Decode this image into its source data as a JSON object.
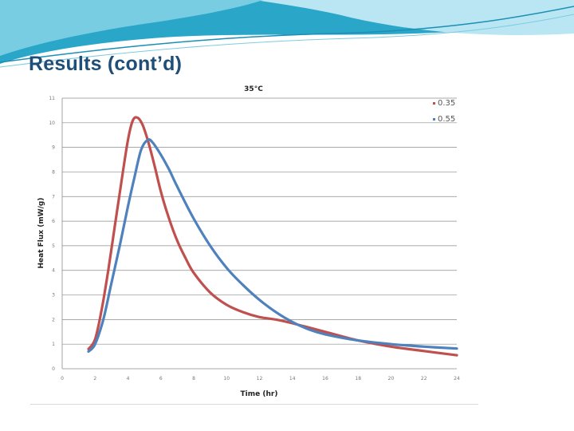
{
  "slide": {
    "title": "Results (cont’d)"
  },
  "chart_data": {
    "type": "line",
    "title": "35°C",
    "xlabel": "Time (hr)",
    "ylabel": "Heat Flux (mW/g)",
    "xlim": [
      0,
      24
    ],
    "ylim": [
      0,
      11
    ],
    "x_ticks": [
      0,
      2,
      4,
      6,
      8,
      10,
      12,
      14,
      16,
      18,
      20,
      22,
      24
    ],
    "y_ticks": [
      0,
      1,
      2,
      3,
      4,
      5,
      6,
      7,
      8,
      9,
      10,
      11
    ],
    "grid": "horizontal",
    "legend_position": "top-right",
    "series": [
      {
        "name": "0.35",
        "color": "#c0504d",
        "x": [
          1.6,
          2.0,
          2.4,
          2.8,
          3.2,
          3.6,
          4.0,
          4.3,
          4.6,
          4.9,
          5.2,
          5.6,
          6.0,
          6.5,
          7.0,
          7.5,
          8.0,
          9.0,
          10.0,
          11.0,
          12.0,
          13.0,
          14.0,
          16.0,
          18.0,
          20.0,
          22.0,
          24.0
        ],
        "y": [
          0.8,
          1.2,
          2.4,
          4.0,
          5.8,
          7.6,
          9.3,
          10.1,
          10.2,
          9.9,
          9.3,
          8.3,
          7.2,
          6.1,
          5.2,
          4.5,
          3.9,
          3.1,
          2.6,
          2.3,
          2.1,
          2.0,
          1.85,
          1.5,
          1.15,
          0.9,
          0.72,
          0.55
        ]
      },
      {
        "name": "0.55",
        "color": "#4f81bd",
        "x": [
          1.6,
          2.0,
          2.5,
          3.0,
          3.5,
          4.0,
          4.4,
          4.8,
          5.2,
          5.5,
          6.0,
          6.5,
          7.0,
          8.0,
          9.0,
          10.0,
          11.0,
          12.0,
          13.0,
          14.0,
          15.0,
          16.0,
          18.0,
          20.0,
          22.0,
          24.0
        ],
        "y": [
          0.7,
          1.0,
          2.0,
          3.5,
          5.0,
          6.6,
          7.8,
          8.9,
          9.3,
          9.2,
          8.7,
          8.1,
          7.4,
          6.1,
          5.0,
          4.1,
          3.4,
          2.8,
          2.3,
          1.9,
          1.6,
          1.4,
          1.15,
          1.0,
          0.9,
          0.82
        ]
      }
    ]
  }
}
